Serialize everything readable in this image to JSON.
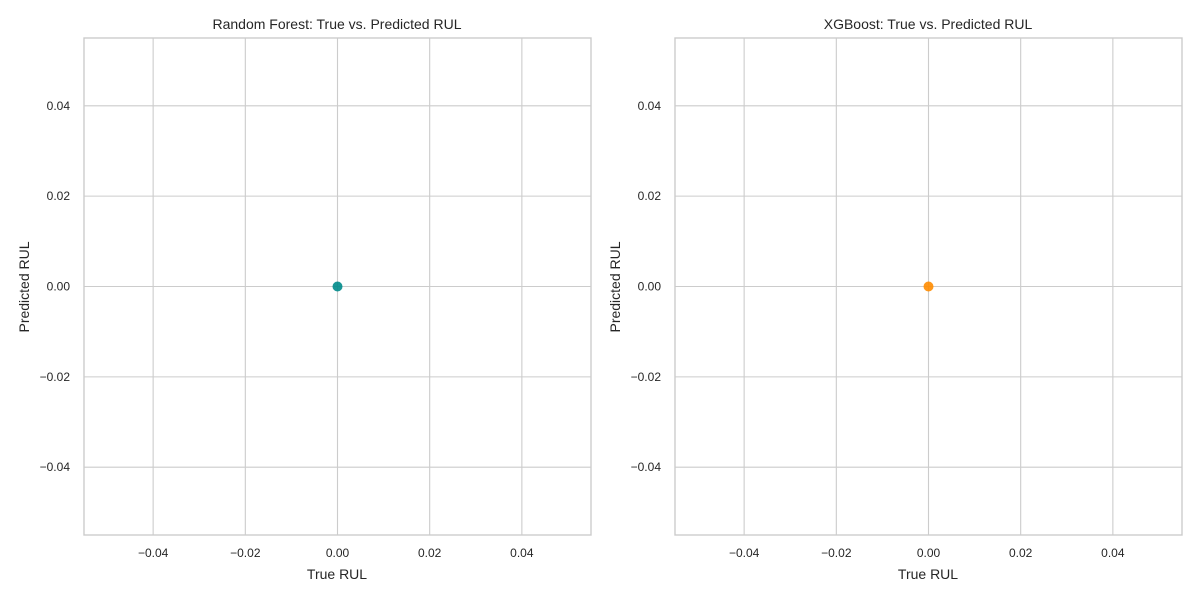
{
  "chart_data": [
    {
      "type": "scatter",
      "title": "Random Forest: True vs. Predicted RUL",
      "xlabel": "True RUL",
      "ylabel": "Predicted RUL",
      "xlim": [
        -0.055,
        0.055
      ],
      "ylim": [
        -0.055,
        0.055
      ],
      "xticks": [
        -0.04,
        -0.02,
        0.0,
        0.02,
        0.04
      ],
      "yticks": [
        -0.04,
        -0.02,
        0.0,
        0.02,
        0.04
      ],
      "xtick_labels": [
        "−0.04",
        "−0.02",
        "0.00",
        "0.02",
        "0.04"
      ],
      "ytick_labels": [
        "−0.04",
        "−0.02",
        "0.00",
        "0.02",
        "0.04"
      ],
      "grid": true,
      "series": [
        {
          "color": "#008b8b",
          "x": [
            0.0
          ],
          "y": [
            0.0
          ]
        }
      ]
    },
    {
      "type": "scatter",
      "title": "XGBoost: True vs. Predicted RUL",
      "xlabel": "True RUL",
      "ylabel": "Predicted RUL",
      "xlim": [
        -0.055,
        0.055
      ],
      "ylim": [
        -0.055,
        0.055
      ],
      "xticks": [
        -0.04,
        -0.02,
        0.0,
        0.02,
        0.04
      ],
      "yticks": [
        -0.04,
        -0.02,
        0.0,
        0.02,
        0.04
      ],
      "xtick_labels": [
        "−0.04",
        "−0.02",
        "0.00",
        "0.02",
        "0.04"
      ],
      "ytick_labels": [
        "−0.04",
        "−0.02",
        "0.00",
        "0.02",
        "0.04"
      ],
      "grid": true,
      "series": [
        {
          "color": "#ff8c00",
          "x": [
            0.0
          ],
          "y": [
            0.0
          ]
        }
      ]
    }
  ]
}
